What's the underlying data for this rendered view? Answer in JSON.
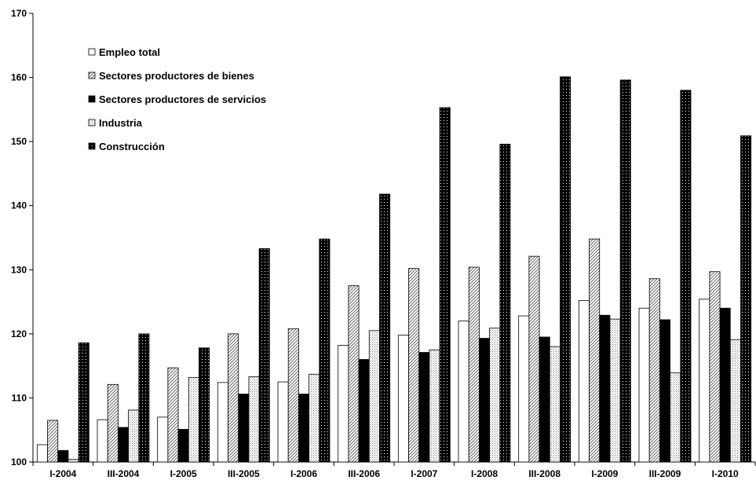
{
  "chart_data": {
    "type": "bar",
    "title": "",
    "xlabel": "",
    "ylabel": "",
    "ylim": [
      100,
      170
    ],
    "yticks": [
      100,
      110,
      120,
      130,
      140,
      150,
      160,
      170
    ],
    "grid": false,
    "legend_position": "top-left",
    "categories": [
      "I-2004",
      "III-2004",
      "I-2005",
      "III-2005",
      "I-2006",
      "III-2006",
      "I-2007",
      "I-2008",
      "III-2008",
      "I-2009",
      "III-2009",
      "I-2010"
    ],
    "series": [
      {
        "name": "Empleo total",
        "style": "white",
        "values": [
          102.7,
          106.6,
          107.0,
          112.4,
          112.5,
          118.2,
          119.8,
          122.0,
          122.8,
          125.2,
          124.0,
          125.4
        ]
      },
      {
        "name": "Sectores productores de bienes",
        "style": "diagonal-hatch",
        "values": [
          106.5,
          112.1,
          114.7,
          120.0,
          120.8,
          127.5,
          130.2,
          130.4,
          132.1,
          134.8,
          128.6,
          129.7
        ]
      },
      {
        "name": "Sectores productores de servicios",
        "style": "solid-black",
        "values": [
          101.8,
          105.4,
          105.1,
          110.6,
          110.6,
          116.0,
          117.1,
          119.3,
          119.5,
          122.9,
          122.2,
          124.0
        ]
      },
      {
        "name": "Industria",
        "style": "light-dots",
        "values": [
          100.4,
          108.1,
          113.2,
          113.3,
          113.7,
          120.5,
          117.5,
          120.9,
          118.0,
          122.3,
          113.9,
          119.1
        ]
      },
      {
        "name": "Construcción",
        "style": "black-dotted",
        "values": [
          118.6,
          120.0,
          117.8,
          133.3,
          134.8,
          141.8,
          155.3,
          149.6,
          160.1,
          159.6,
          158.0,
          150.9
        ]
      }
    ]
  }
}
